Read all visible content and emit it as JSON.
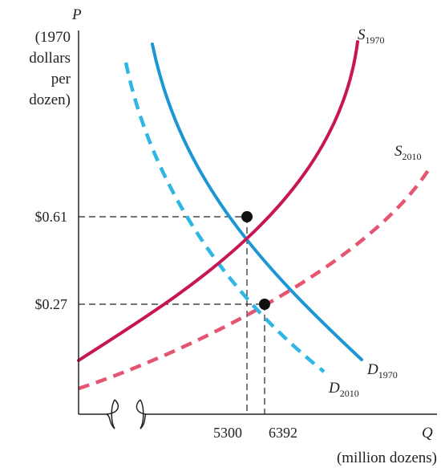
{
  "chart_data": {
    "type": "line",
    "y_axis": {
      "symbol": "P",
      "unit_lines": [
        "(1970",
        "dollars",
        "per",
        "dozen)"
      ],
      "ticks": [
        {
          "value": 0.61,
          "label": "$0.61"
        },
        {
          "value": 0.27,
          "label": "$0.27"
        }
      ]
    },
    "x_axis": {
      "symbol": "Q",
      "unit": "(million dozens)",
      "ticks": [
        {
          "value": 5300,
          "label": "5300"
        },
        {
          "value": 6392,
          "label": "6392"
        }
      ],
      "break": true
    },
    "series": [
      {
        "name": "S1970",
        "base": "S",
        "sub": "1970",
        "kind": "supply",
        "color": "#c8174f",
        "dashed": false
      },
      {
        "name": "D1970",
        "base": "D",
        "sub": "1970",
        "kind": "demand",
        "color": "#1d96d4",
        "dashed": false
      },
      {
        "name": "S2010",
        "base": "S",
        "sub": "2010",
        "kind": "supply",
        "color": "#e55470",
        "dashed": true
      },
      {
        "name": "D2010",
        "base": "D",
        "sub": "2010",
        "kind": "demand",
        "color": "#2eb6e5",
        "dashed": true
      }
    ],
    "equilibria": [
      {
        "q": 5300,
        "p": 0.61
      },
      {
        "q": 6392,
        "p": 0.27
      }
    ]
  }
}
